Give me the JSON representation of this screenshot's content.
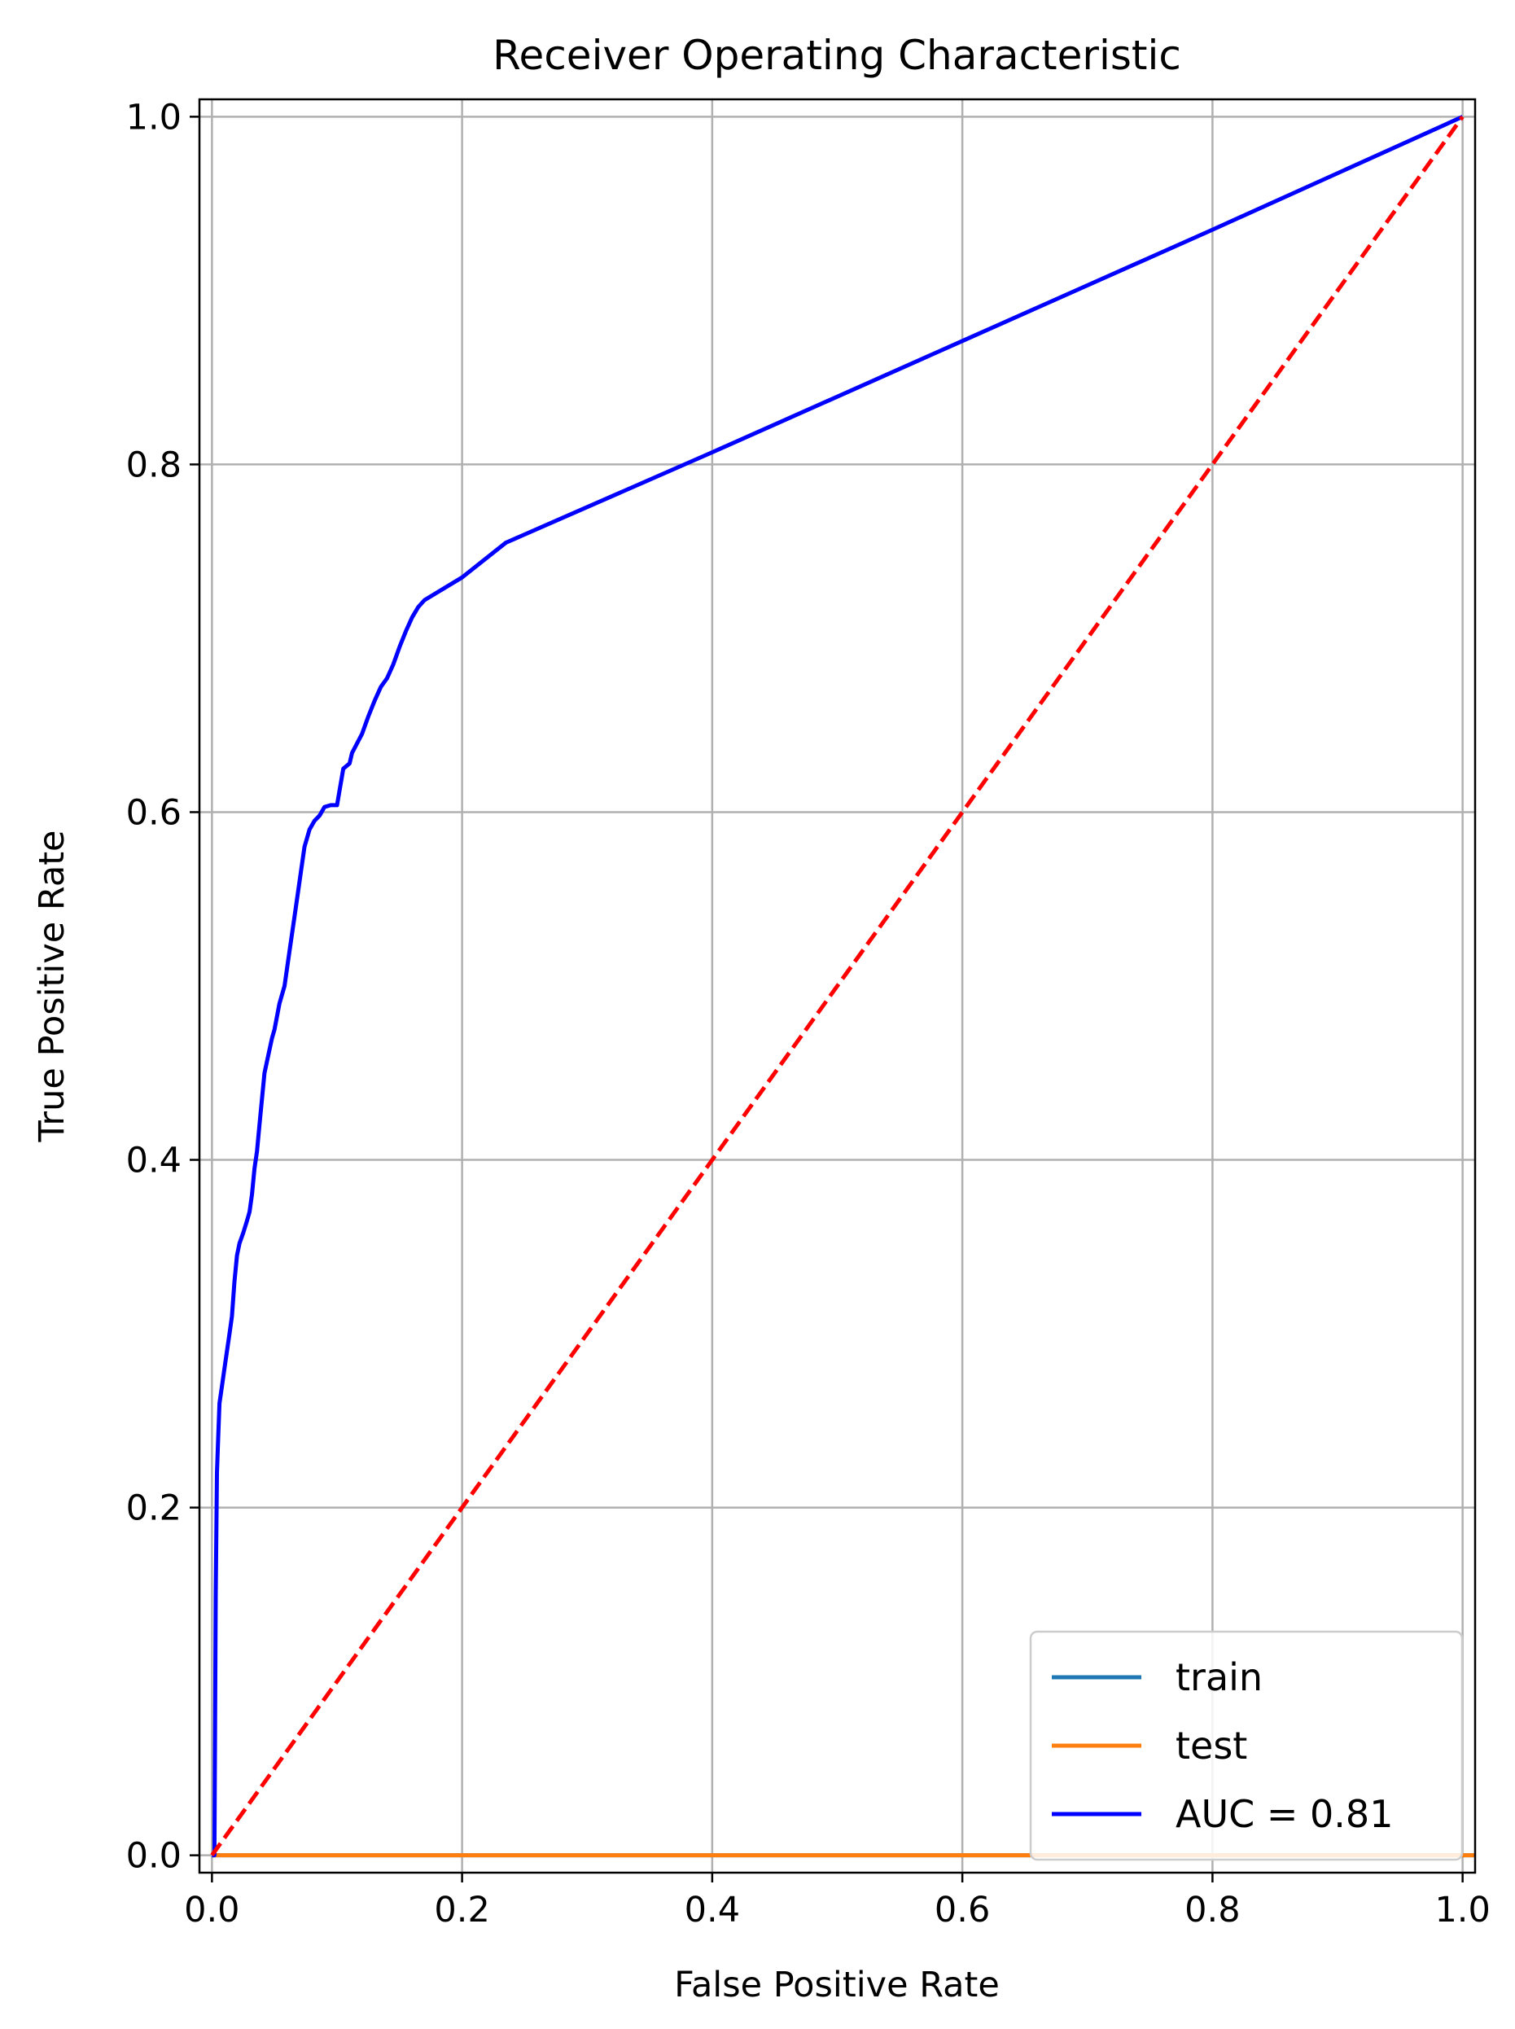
{
  "chart_data": {
    "type": "line",
    "title": "Receiver Operating Characteristic",
    "xlabel": "False Positive Rate",
    "ylabel": "True Positive Rate",
    "xlim": [
      -0.01,
      1.01
    ],
    "ylim": [
      -0.01,
      1.01
    ],
    "x_ticks": [
      0.0,
      0.2,
      0.4,
      0.6,
      0.8,
      1.0
    ],
    "x_tick_labels": [
      "0.0",
      "0.2",
      "0.4",
      "0.6",
      "0.8",
      "1.0"
    ],
    "y_ticks": [
      0.0,
      0.2,
      0.4,
      0.6,
      0.8,
      1.0
    ],
    "y_tick_labels": [
      "0.0",
      "0.2",
      "0.4",
      "0.6",
      "0.8",
      "1.0"
    ],
    "grid": true,
    "legend_position": "lower-right",
    "series": [
      {
        "name": "train",
        "color": "#1f77b4",
        "style": "solid",
        "x": [
          0.0,
          1.01
        ],
        "y": [
          0.0,
          0.0
        ]
      },
      {
        "name": "test",
        "color": "#ff7f0e",
        "style": "solid",
        "x": [
          0.0,
          1.01
        ],
        "y": [
          0.0,
          0.0
        ]
      },
      {
        "name": "AUC = 0.81",
        "color": "#0000ff",
        "style": "solid",
        "x": [
          0.0,
          0.002,
          0.003,
          0.004,
          0.005,
          0.006,
          0.008,
          0.01,
          0.012,
          0.014,
          0.016,
          0.018,
          0.02,
          0.022,
          0.025,
          0.028,
          0.03,
          0.032,
          0.034,
          0.036,
          0.038,
          0.04,
          0.042,
          0.045,
          0.048,
          0.05,
          0.054,
          0.058,
          0.062,
          0.066,
          0.07,
          0.074,
          0.078,
          0.082,
          0.086,
          0.09,
          0.095,
          0.1,
          0.105,
          0.11,
          0.112,
          0.12,
          0.125,
          0.13,
          0.135,
          0.14,
          0.145,
          0.15,
          0.155,
          0.16,
          0.165,
          0.17,
          0.2,
          0.235,
          0.4,
          0.6,
          0.8,
          1.0
        ],
        "y": [
          0.0,
          0.0,
          0.15,
          0.22,
          0.24,
          0.26,
          0.27,
          0.28,
          0.29,
          0.3,
          0.31,
          0.33,
          0.345,
          0.352,
          0.358,
          0.365,
          0.37,
          0.38,
          0.395,
          0.405,
          0.42,
          0.435,
          0.45,
          0.46,
          0.47,
          0.475,
          0.49,
          0.5,
          0.52,
          0.54,
          0.56,
          0.58,
          0.59,
          0.595,
          0.598,
          0.603,
          0.604,
          0.604,
          0.625,
          0.628,
          0.634,
          0.645,
          0.655,
          0.664,
          0.672,
          0.677,
          0.685,
          0.695,
          0.704,
          0.712,
          0.718,
          0.722,
          0.735,
          0.755,
          0.807,
          0.871,
          0.935,
          1.0
        ]
      },
      {
        "name": "",
        "color": "#ff0000",
        "style": "dashed",
        "x": [
          0.0,
          1.0
        ],
        "y": [
          0.0,
          1.0
        ]
      }
    ]
  }
}
